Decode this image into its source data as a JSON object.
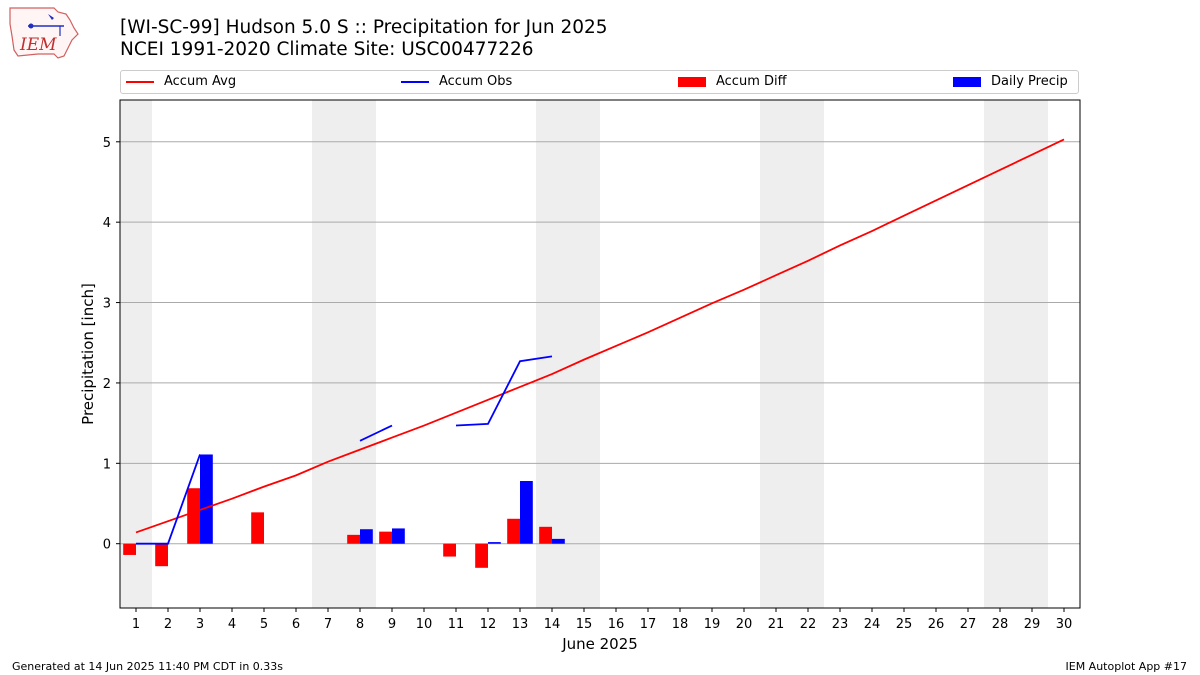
{
  "header": {
    "title_line1": "[WI-SC-99] Hudson 5.0 S :: Precipitation for Jun 2025",
    "title_line2": "NCEI 1991-2020 Climate Site: USC00477226",
    "logo_text": "IEM"
  },
  "legend": {
    "accum_avg": "Accum Avg",
    "accum_obs": "Accum Obs",
    "accum_diff": "Accum Diff",
    "daily_precip": "Daily Precip"
  },
  "footer": {
    "generated": "Generated at 14 Jun 2025 11:40 PM CDT in 0.33s",
    "app": "IEM Autoplot App #17"
  },
  "colors": {
    "accum_avg": "#ff0000",
    "accum_obs": "#0000ff",
    "accum_diff": "#ff0000",
    "daily_precip": "#0000ff",
    "weekend_shade": "#eeeeee",
    "grid": "#aaaaaa"
  },
  "chart_data": {
    "type": "bar",
    "xlabel": "June 2025",
    "ylabel": "Precipitation [inch]",
    "xlim": [
      0.5,
      30.5
    ],
    "ylim": [
      -0.8,
      5.52
    ],
    "x_ticks": [
      1,
      2,
      3,
      4,
      5,
      6,
      7,
      8,
      9,
      10,
      11,
      12,
      13,
      14,
      15,
      16,
      17,
      18,
      19,
      20,
      21,
      22,
      23,
      24,
      25,
      26,
      27,
      28,
      29,
      30
    ],
    "y_ticks": [
      0,
      1,
      2,
      3,
      4,
      5
    ],
    "grid": "horizontal",
    "legend_position": "top",
    "shaded_days": [
      [
        0.5,
        1.5
      ],
      [
        6.5,
        8.5
      ],
      [
        13.5,
        15.5
      ],
      [
        20.5,
        22.5
      ],
      [
        27.5,
        29.5
      ]
    ],
    "days": [
      1,
      2,
      3,
      4,
      5,
      6,
      7,
      8,
      9,
      10,
      11,
      12,
      13,
      14,
      15,
      16,
      17,
      18,
      19,
      20,
      21,
      22,
      23,
      24,
      25,
      26,
      27,
      28,
      29,
      30
    ],
    "accum_avg": [
      0.14,
      0.28,
      0.42,
      0.56,
      0.71,
      0.85,
      1.02,
      1.17,
      1.32,
      1.47,
      1.63,
      1.79,
      1.95,
      2.11,
      2.29,
      2.46,
      2.63,
      2.81,
      2.99,
      3.16,
      3.34,
      3.52,
      3.71,
      3.89,
      4.08,
      4.27,
      4.46,
      4.65,
      4.84,
      5.03
    ],
    "accum_obs": [
      0.0,
      0.0,
      1.11,
      null,
      null,
      null,
      null,
      1.28,
      1.47,
      null,
      1.47,
      1.49,
      2.27,
      2.33,
      null,
      null,
      null,
      null,
      null,
      null,
      null,
      null,
      null,
      null,
      null,
      null,
      null,
      null,
      null,
      null
    ],
    "accum_diff": [
      -0.14,
      -0.28,
      0.69,
      null,
      0.39,
      null,
      null,
      0.11,
      0.15,
      null,
      -0.16,
      -0.3,
      0.31,
      0.21,
      null,
      null,
      null,
      null,
      null,
      null,
      null,
      null,
      null,
      null,
      null,
      null,
      null,
      null,
      null,
      null
    ],
    "daily_precip": [
      0.0,
      0.0,
      1.11,
      null,
      null,
      null,
      null,
      0.18,
      0.19,
      null,
      null,
      0.02,
      0.78,
      0.06,
      null,
      null,
      null,
      null,
      null,
      null,
      null,
      null,
      null,
      null,
      null,
      null,
      null,
      null,
      null,
      null
    ]
  }
}
